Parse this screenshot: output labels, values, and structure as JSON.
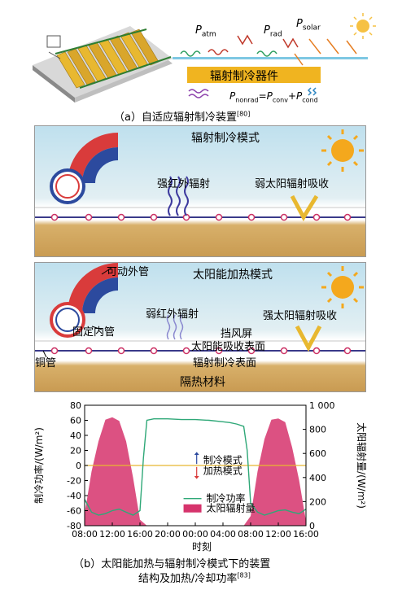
{
  "panel_a": {
    "labels": {
      "P_atm": "atm",
      "P_rad": "rad",
      "P_solar": "solar",
      "device": "辐射制冷器件",
      "equation_lhs": "nonrad",
      "equation_terms": [
        "conv",
        "cond"
      ]
    },
    "caption": "（a）自适应辐射制冷装置",
    "caption_ref": "[80]"
  },
  "panel_cooling": {
    "title": "辐射制冷模式",
    "strong_ir": "强红外辐射",
    "weak_solar": "弱太阳辐射吸收"
  },
  "panel_heating": {
    "title": "太阳能加热模式",
    "movable_tube": "可动外管",
    "fixed_tube": "固定内管",
    "weak_ir": "弱红外辐射",
    "strong_solar": "强太阳辐射吸收",
    "windshield": "挡风屏",
    "absorb_surface": "太阳能吸收表面",
    "cool_surface": "辐射制冷表面",
    "copper": "铜管",
    "insulation": "隔热材料"
  },
  "chart_data": {
    "type": "area",
    "ylabel": "制冷功率/(W/m²)",
    "y2label": "太阳辐射量/(W/m²)",
    "xlabel": "时刻",
    "ylim": [
      -80,
      80
    ],
    "y2lim": [
      0,
      1000
    ],
    "yticks": [
      80,
      60,
      40,
      20,
      0,
      -20,
      -40,
      -60,
      -80
    ],
    "y2ticks": [
      "1 000",
      "800",
      "600",
      "400",
      "200",
      "0"
    ],
    "xticks": [
      "08:00",
      "12:00",
      "16:00",
      "20:00",
      "00:00",
      "04:00",
      "08:00",
      "12:00",
      "16:00"
    ],
    "x_hours": [
      0,
      4,
      8,
      12,
      16,
      20,
      24,
      28,
      32
    ],
    "series": [
      {
        "name": "制冷功率",
        "color": "#2fa878",
        "x": [
          0,
          1,
          2,
          3,
          4,
          5,
          6,
          7,
          8,
          8.5,
          9,
          10,
          12,
          14,
          16,
          18,
          20,
          21,
          22,
          23,
          23.5,
          24,
          25,
          26,
          27,
          28,
          29,
          30,
          31,
          32
        ],
        "values": [
          -45,
          -62,
          -66,
          -64,
          -60,
          -58,
          -62,
          -66,
          -60,
          10,
          60,
          62,
          62,
          61,
          61,
          60,
          58,
          57,
          55,
          52,
          20,
          -50,
          -62,
          -66,
          -63,
          -60,
          -59,
          -62,
          -64,
          -58
        ]
      },
      {
        "name": "太阳辐射量",
        "color": "#d6336c",
        "x": [
          0,
          1,
          2,
          3,
          4,
          5,
          6,
          7,
          8,
          9,
          23,
          24,
          25,
          26,
          27,
          28,
          29,
          30,
          31,
          32
        ],
        "values": [
          100,
          450,
          700,
          880,
          900,
          870,
          700,
          400,
          50,
          0,
          0,
          80,
          450,
          720,
          880,
          890,
          860,
          650,
          380,
          40
        ]
      }
    ],
    "legend": [
      "制冷功率",
      "太阳辐射量"
    ],
    "annotations": {
      "cool_mode": "制冷模式",
      "heat_mode": "加热模式"
    }
  },
  "caption_b": {
    "line1": "（b）太阳能加热与辐射制冷模式下的装置",
    "line2": "结构及加热/冷却功率",
    "ref": "[83]"
  }
}
